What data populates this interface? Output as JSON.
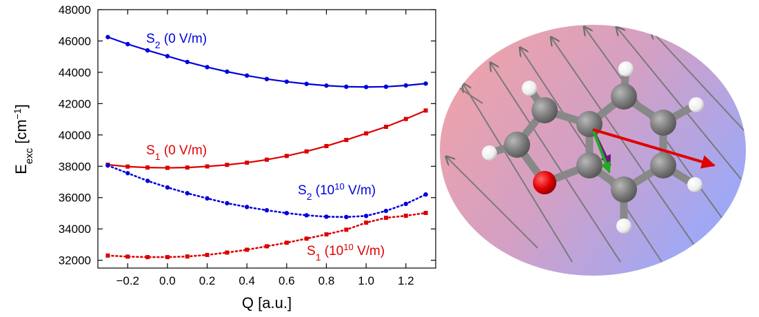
{
  "chart_data": {
    "type": "line",
    "xlabel": "Q [a.u.]",
    "ylabel": {
      "base": "E",
      "sub": "exc",
      "unit_pre": " [cm",
      "unit_sup": "−1",
      "unit_post": "]"
    },
    "xlim": [
      -0.35,
      1.35
    ],
    "ylim": [
      31500,
      48000
    ],
    "x_ticks": [
      -0.2,
      0.0,
      0.2,
      0.4,
      0.6,
      0.8,
      1.0,
      1.2
    ],
    "x_tick_labels": [
      "−0.2",
      "0.0",
      "0.2",
      "0.4",
      "0.6",
      "0.8",
      "1.0",
      "1.2"
    ],
    "y_ticks": [
      32000,
      34000,
      36000,
      38000,
      40000,
      42000,
      44000,
      46000,
      48000
    ],
    "y_tick_labels": [
      "32000",
      "34000",
      "36000",
      "38000",
      "40000",
      "42000",
      "44000",
      "46000",
      "48000"
    ],
    "grid": false,
    "x": [
      -0.3,
      -0.2,
      -0.1,
      0.0,
      0.1,
      0.2,
      0.3,
      0.4,
      0.5,
      0.6,
      0.7,
      0.8,
      0.9,
      1.0,
      1.1,
      1.2,
      1.3
    ],
    "series": [
      {
        "label": {
          "main": "S",
          "sub": "2",
          "rest": " (0 V/m)"
        },
        "color": "#0000dd",
        "style": "solid",
        "marker": "circle",
        "values": [
          46250,
          45800,
          45400,
          45030,
          44660,
          44330,
          44040,
          43790,
          43570,
          43400,
          43260,
          43150,
          43080,
          43060,
          43080,
          43160,
          43280
        ]
      },
      {
        "label": {
          "main": "S",
          "sub": "1",
          "rest": " (0 V/m)"
        },
        "color": "#dd0000",
        "style": "solid",
        "marker": "square",
        "values": [
          38100,
          37980,
          37920,
          37900,
          37920,
          37990,
          38090,
          38230,
          38420,
          38660,
          38950,
          39290,
          39680,
          40100,
          40520,
          41020,
          41560
        ]
      },
      {
        "label": {
          "main": "S",
          "sub": "2",
          "rest_pre": " (10",
          "sup": "10",
          "rest_post": " V/m)"
        },
        "color": "#0000dd",
        "style": "dotted",
        "marker": "circle",
        "values": [
          38050,
          37560,
          37070,
          36650,
          36280,
          35950,
          35640,
          35400,
          35190,
          35010,
          34870,
          34780,
          34760,
          34830,
          35150,
          35600,
          36200
        ]
      },
      {
        "label": {
          "main": "S",
          "sub": "1",
          "rest_pre": " (10",
          "sup": "10",
          "rest_post": " V/m)"
        },
        "color": "#dd0000",
        "style": "dotted",
        "marker": "square",
        "values": [
          32300,
          32230,
          32200,
          32200,
          32240,
          32340,
          32490,
          32670,
          32890,
          33120,
          33380,
          33650,
          33950,
          34400,
          34710,
          34840,
          35020
        ]
      }
    ]
  },
  "illustration": {
    "description_colors": {
      "bg_left": "#f5a0a0",
      "bg_right": "#a0a8f5",
      "carbon": "#7a7a7a",
      "hydrogen": "#f2f2f2",
      "oxygen": "#e00000",
      "field_arrow": "#808080",
      "dipole_red": "#e00000",
      "dipole_green": "#22aa22",
      "dipole_purple": "#6a1a7a"
    }
  }
}
